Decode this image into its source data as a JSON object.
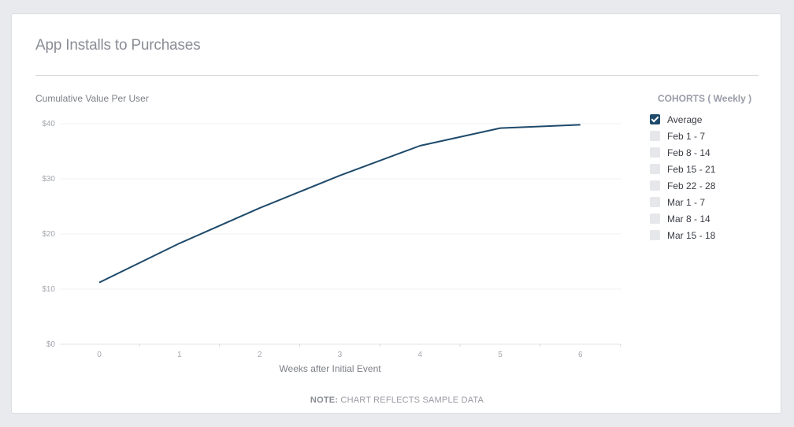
{
  "page": {
    "title": "App Installs to Purchases"
  },
  "chart_data": {
    "type": "line",
    "ylabel": "Cumulative Value Per User",
    "xlabel": "Weeks after Initial Event",
    "x": [
      0,
      1,
      2,
      3,
      4,
      5,
      6
    ],
    "y_ticks": [
      "$0",
      "$10",
      "$20",
      "$30",
      "$40"
    ],
    "ylim": [
      0,
      40
    ],
    "series": [
      {
        "values": [
          11.2,
          18.3,
          24.7,
          30.6,
          36.0,
          39.2,
          39.8
        ],
        "color": "#1e4a6b"
      }
    ],
    "grid": true
  },
  "legend": {
    "title": "COHORTS ( Weekly )",
    "items": [
      {
        "label": "Average",
        "checked": true
      },
      {
        "label": "Feb 1 - 7",
        "checked": false
      },
      {
        "label": "Feb 8 - 14",
        "checked": false
      },
      {
        "label": "Feb 15 - 21",
        "checked": false
      },
      {
        "label": "Feb 22 - 28",
        "checked": false
      },
      {
        "label": "Mar 1 - 7",
        "checked": false
      },
      {
        "label": "Mar 8 - 14",
        "checked": false
      },
      {
        "label": "Mar 15 - 18",
        "checked": false
      }
    ]
  },
  "note": {
    "prefix": "NOTE:",
    "text": "CHART REFLECTS SAMPLE DATA"
  },
  "colors": {
    "line": "#1e4a6b",
    "checkbox_checked": "#1e4a6b",
    "checkbox_unchecked": "#e6e7ea"
  }
}
